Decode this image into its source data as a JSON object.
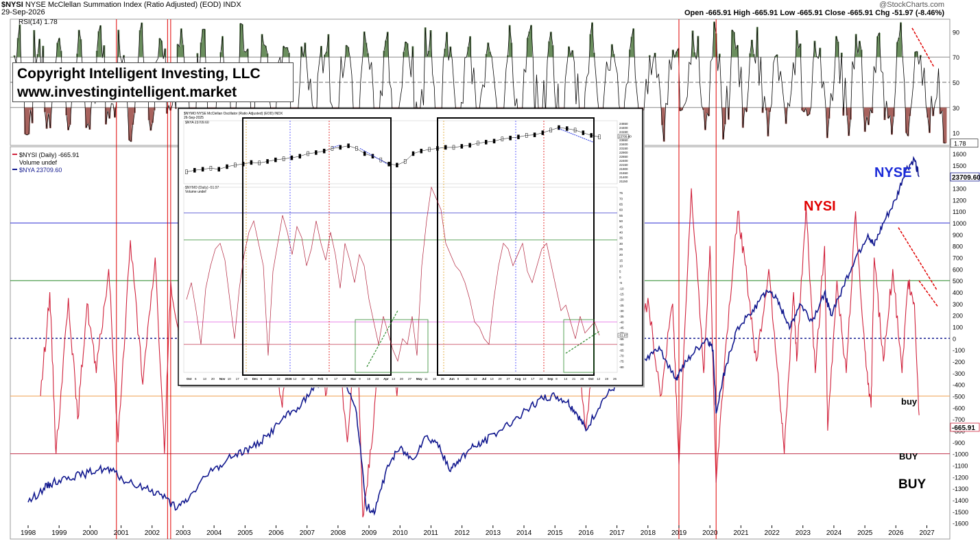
{
  "header": {
    "symbol": "$NYSI",
    "title": "NYSE McClellan Summation Index (Ratio Adjusted) (EOD)",
    "exchange": "INDX",
    "date": "29-Sep-2026",
    "watermark": "@StockCharts.com",
    "ohlc": "Open -665.91  High -665.91  Low -665.91  Close -665.91  Chg -51.97 (-8.46%)"
  },
  "copyright": {
    "line1": "Copyright Intelligent Investing, LLC",
    "line2": "www.investingintelligent.market"
  },
  "chart_data": [
    {
      "type": "line",
      "panel": "rsi",
      "label": "RSI(14) 1.78",
      "current_value": "1.78",
      "ylim": [
        0,
        100
      ],
      "y_ticks": [
        10,
        30,
        50,
        70,
        90
      ],
      "reference_lines": [
        30,
        50,
        70
      ],
      "x_range": [
        1998,
        2026.75
      ],
      "colors": {
        "line": "#000000",
        "overbought_fill": "#6b8f5e",
        "oversold_fill": "#a8635e",
        "trend": "#e00000"
      }
    },
    {
      "type": "line",
      "panel": "main",
      "legend": [
        "$NYSI (Daily) -665.91",
        "Volume undef",
        "$NYA 23709.60"
      ],
      "y_ticks": [
        -1600,
        -1500,
        -1400,
        -1300,
        -1200,
        -1100,
        -1000,
        -900,
        -800,
        -700,
        -600,
        -500,
        -400,
        -300,
        -200,
        -100,
        0,
        100,
        200,
        300,
        400,
        500,
        600,
        700,
        800,
        900,
        1000,
        1100,
        1200,
        1300,
        1400,
        1500,
        1600
      ],
      "ylim": [
        -1620,
        1660
      ],
      "x_ticks": [
        "1998",
        "1999",
        "2000",
        "2001",
        "2002",
        "2003",
        "2004",
        "2005",
        "2006",
        "2007",
        "2008",
        "2009",
        "2010",
        "2011",
        "2012",
        "2013",
        "2014",
        "2015",
        "2016",
        "2017",
        "2018",
        "2019",
        "2020",
        "2021",
        "2022",
        "2023",
        "2024",
        "2025",
        "2026",
        "2027"
      ],
      "series": [
        {
          "name": "NYSI",
          "color": "#d0203a",
          "last": "-665.91",
          "x": [
            1998.4,
            1998.7,
            1998.9,
            1999.3,
            1999.6,
            1999.9,
            2000.2,
            2000.6,
            2000.9,
            2001.3,
            2001.7,
            2002.1,
            2002.4,
            2002.6,
            2003.0,
            2003.4,
            2003.8,
            2004.2,
            2004.6,
            2005.0,
            2005.4,
            2005.8,
            2006.2,
            2006.5,
            2006.9,
            2007.3,
            2007.6,
            2007.9,
            2008.3,
            2008.6,
            2008.8,
            2009.1,
            2009.5,
            2009.9,
            2010.3,
            2010.6,
            2011.0,
            2011.4,
            2011.7,
            2012.1,
            2012.5,
            2012.9,
            2013.3,
            2013.6,
            2014.0,
            2014.4,
            2014.8,
            2015.2,
            2015.6,
            2016.0,
            2016.4,
            2016.8,
            2017.2,
            2017.6,
            2018.0,
            2018.4,
            2018.8,
            2019.0,
            2019.4,
            2019.8,
            2020.0,
            2020.2,
            2020.5,
            2020.9,
            2021.2,
            2021.5,
            2021.9,
            2022.2,
            2022.4,
            2022.7,
            2022.8,
            2023.1,
            2023.4,
            2023.7,
            2023.8,
            2024.1,
            2024.4,
            2024.7,
            2025.0,
            2025.2,
            2025.3,
            2025.6,
            2025.9,
            2026.2,
            2026.4,
            2026.6,
            2026.75
          ],
          "y": [
            -500,
            400,
            -1000,
            350,
            -700,
            300,
            -300,
            600,
            -900,
            850,
            -400,
            700,
            -1000,
            500,
            -300,
            450,
            -200,
            400,
            -300,
            300,
            -400,
            200,
            -600,
            350,
            -300,
            400,
            -500,
            200,
            -900,
            300,
            -1550,
            -900,
            600,
            -500,
            250,
            -300,
            200,
            -400,
            300,
            -200,
            350,
            -300,
            400,
            -250,
            500,
            -200,
            350,
            -400,
            300,
            -800,
            250,
            -300,
            400,
            -200,
            350,
            -500,
            300,
            -1100,
            1300,
            -300,
            800,
            -1250,
            -100,
            1100,
            500,
            -200,
            600,
            -300,
            -1000,
            400,
            -200,
            1150,
            -300,
            800,
            -800,
            500,
            -300,
            1100,
            -100,
            -600,
            700,
            -200,
            600,
            -300,
            500,
            300,
            -665.91
          ]
        },
        {
          "name": "NYSE",
          "color": "#10178e",
          "last": "23709.60",
          "x": [
            1998.0,
            1998.5,
            1998.8,
            1999.3,
            1999.8,
            2000.3,
            2000.7,
            2001.2,
            2001.8,
            2002.3,
            2002.8,
            2003.2,
            2003.7,
            2004.2,
            2004.7,
            2005.2,
            2005.7,
            2006.2,
            2006.7,
            2007.2,
            2007.6,
            2007.9,
            2008.2,
            2008.6,
            2008.9,
            2009.2,
            2009.6,
            2010.0,
            2010.4,
            2010.8,
            2011.2,
            2011.6,
            2011.9,
            2012.3,
            2012.7,
            2013.2,
            2013.7,
            2014.2,
            2014.6,
            2015.0,
            2015.4,
            2015.7,
            2016.0,
            2016.5,
            2017.0,
            2017.5,
            2018.0,
            2018.4,
            2018.9,
            2019.0,
            2019.4,
            2019.9,
            2020.1,
            2020.2,
            2020.5,
            2020.9,
            2021.3,
            2021.7,
            2022.0,
            2022.3,
            2022.6,
            2022.9,
            2023.3,
            2023.7,
            2023.9,
            2024.3,
            2024.7,
            2025.1,
            2025.3,
            2025.6,
            2026.0,
            2026.3,
            2026.6,
            2026.75
          ],
          "y": [
            -1420,
            -1300,
            -1250,
            -1200,
            -1180,
            -1130,
            -1150,
            -1250,
            -1300,
            -1350,
            -1480,
            -1380,
            -1200,
            -1100,
            -1000,
            -950,
            -850,
            -700,
            -600,
            -450,
            -300,
            -200,
            -350,
            -650,
            -1450,
            -1500,
            -1100,
            -950,
            -1050,
            -850,
            -900,
            -1150,
            -1050,
            -950,
            -900,
            -800,
            -700,
            -600,
            -520,
            -500,
            -550,
            -650,
            -800,
            -550,
            -400,
            -300,
            -150,
            -100,
            -350,
            -300,
            -150,
            0,
            -100,
            -650,
            -250,
            100,
            200,
            380,
            400,
            250,
            100,
            300,
            150,
            400,
            200,
            450,
            700,
            900,
            800,
            1000,
            1200,
            1450,
            1550,
            1400
          ]
        }
      ],
      "annotations": {
        "nyse_label": "NYSE",
        "nysi_label": "NYSI",
        "buy_small": "buy",
        "buy_medium": "BUY",
        "buy_large": "BUY",
        "last_nysi": "-665.91",
        "last_nya": "23709.60"
      },
      "reference_lines": [
        {
          "y": 1000,
          "color": "#2b2bd0"
        },
        {
          "y": 500,
          "color": "#2d8a2d"
        },
        {
          "y": 0,
          "color": "#10178e"
        },
        {
          "y": -500,
          "color": "#f0a050"
        },
        {
          "y": -1000,
          "color": "#c0304a"
        }
      ],
      "vertical_markers": [
        2000.85,
        2002.5,
        2002.6,
        2019.0,
        2020.2
      ],
      "colors": {
        "marker": "#e00000",
        "trend": "#e00000"
      }
    },
    {
      "type": "line",
      "panel": "inset",
      "header": "$NYMO NYSE McClellan Oscillator (Ratio Adjusted) (EOD) INDX",
      "date": "26-Sep-2025",
      "legend_top": "$NYA 23709.60",
      "legend_mid": "$NYMO (Daily) -51.97",
      "legend_vol": "Volume undef",
      "current_value": "-51.97",
      "last_price": "23709.60",
      "x_ticks": [
        "Oct",
        "6",
        "13",
        "20",
        "Nov",
        "10",
        "17",
        "24",
        "Dec",
        "8",
        "15",
        "22",
        "2026",
        "12",
        "20",
        "26",
        "Feb",
        "9",
        "17",
        "23",
        "Mar",
        "9",
        "16",
        "23",
        "Apr",
        "13",
        "20",
        "27",
        "May",
        "11",
        "18",
        "26",
        "Jun",
        "8",
        "15",
        "22",
        "Jul",
        "13",
        "20",
        "27",
        "Aug",
        "10",
        "17",
        "24",
        "Sep",
        "8",
        "14",
        "21",
        "28",
        "Oct",
        "12",
        "19",
        "26"
      ],
      "y_ticks_top": [
        "24650",
        "24400",
        "24150",
        "23900",
        "23650",
        "23400",
        "23150",
        "22900",
        "22650",
        "22400",
        "22150",
        "21900",
        "21650",
        "21400",
        "21150"
      ],
      "y_ticks_bottom": [
        "75",
        "70",
        "65",
        "60",
        "55",
        "50",
        "45",
        "40",
        "35",
        "30",
        "25",
        "20",
        "15",
        "10",
        "5",
        "0",
        "-5",
        "-10",
        "-15",
        "-20",
        "-25",
        "-30",
        "-35",
        "-40",
        "-45",
        "-50",
        "-55",
        "-60",
        "-65",
        "-70",
        "-75",
        "-80"
      ],
      "osc_ylim": [
        -85,
        80
      ],
      "price_ylim": [
        0,
        1
      ],
      "osc": [
        -20,
        -5,
        -30,
        -60,
        -10,
        10,
        25,
        30,
        15,
        -20,
        -55,
        -10,
        20,
        40,
        50,
        30,
        10,
        -70,
        5,
        30,
        55,
        40,
        20,
        45,
        35,
        10,
        25,
        50,
        30,
        15,
        40,
        20,
        -10,
        30,
        15,
        -5,
        20,
        10,
        -20,
        -40,
        -60,
        -35,
        -50,
        -65,
        -75,
        -55,
        -60,
        -35,
        -70,
        10,
        50,
        80,
        70,
        60,
        30,
        20,
        10,
        5,
        -5,
        -20,
        -40,
        -45,
        -55,
        -60,
        -20,
        10,
        30,
        25,
        10,
        20,
        30,
        5,
        -5,
        10,
        25,
        30,
        10,
        -10,
        -30,
        -25,
        -40,
        -55,
        -35,
        -50,
        -45,
        -40,
        -52
      ],
      "price": [
        0.15,
        0.18,
        0.2,
        0.22,
        0.2,
        0.25,
        0.28,
        0.3,
        0.33,
        0.32,
        0.35,
        0.38,
        0.4,
        0.42,
        0.45,
        0.5,
        0.52,
        0.55,
        0.6,
        0.62,
        0.65,
        0.6,
        0.5,
        0.45,
        0.38,
        0.3,
        0.28,
        0.35,
        0.5,
        0.55,
        0.58,
        0.6,
        0.62,
        0.62,
        0.64,
        0.66,
        0.7,
        0.72,
        0.74,
        0.78,
        0.8,
        0.82,
        0.85,
        0.86,
        0.9,
        0.95,
        1.0,
        0.98,
        0.95,
        0.9,
        0.85,
        0.82
      ]
    }
  ],
  "price_label_nysi": "-665.91",
  "price_label_nya": "23709.60",
  "rsi_label_value": "1.78"
}
